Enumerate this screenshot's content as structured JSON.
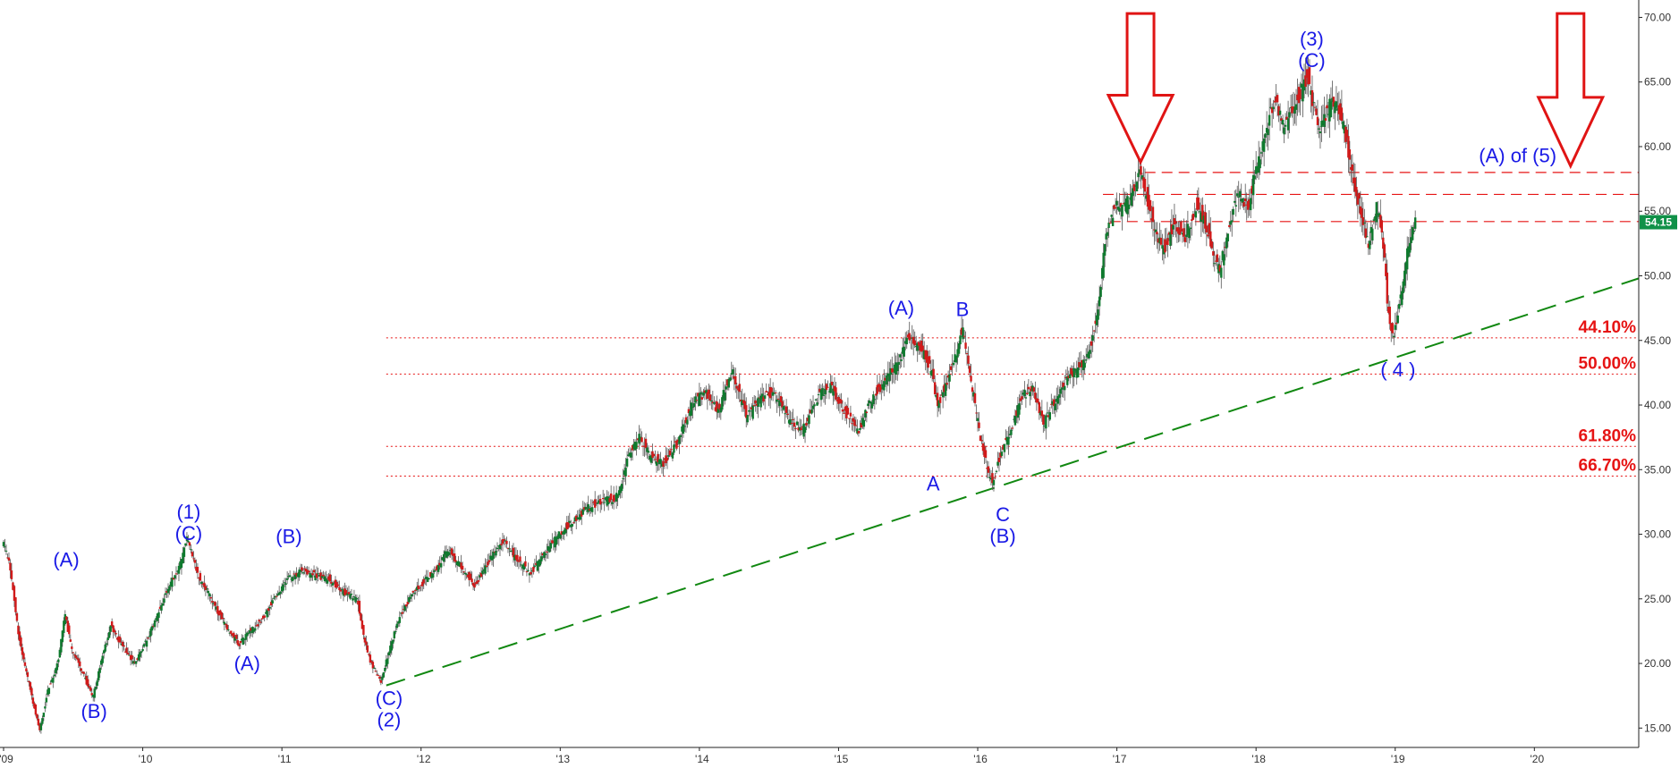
{
  "chart_data": {
    "type": "candlestick",
    "title": "",
    "xlabel": "",
    "ylabel": "",
    "xlim": [
      2009.0,
      2020.75
    ],
    "ylim": [
      13.5,
      71.0
    ],
    "y_axis_position": "right",
    "grid": false,
    "colors": {
      "up": "#0f7a2e",
      "down": "#d11a1a",
      "wick": "#555555",
      "wave_label": "#1a1ae6",
      "fib": "#e61414",
      "trendline": "#118811",
      "resistance": "#e61414",
      "arrow": "#e01414",
      "price_tag": "#109148"
    },
    "y_ticks": [
      "15.00",
      "20.00",
      "25.00",
      "30.00",
      "35.00",
      "40.00",
      "45.00",
      "50.00",
      "55.00",
      "60.00",
      "65.00",
      "70.00"
    ],
    "x_ticks": [
      {
        "x": 2009.0,
        "label": "'09"
      },
      {
        "x": 2010.0,
        "label": "'10"
      },
      {
        "x": 2011.0,
        "label": "'11"
      },
      {
        "x": 2012.0,
        "label": "'12"
      },
      {
        "x": 2013.0,
        "label": "'13"
      },
      {
        "x": 2014.0,
        "label": "'14"
      },
      {
        "x": 2015.0,
        "label": "'15"
      },
      {
        "x": 2016.0,
        "label": "'16"
      },
      {
        "x": 2017.0,
        "label": "'17"
      },
      {
        "x": 2018.0,
        "label": "'18"
      },
      {
        "x": 2019.0,
        "label": "'19"
      },
      {
        "x": 2020.0,
        "label": "'20"
      }
    ],
    "price_path": [
      [
        2009.0,
        29.5
      ],
      [
        2009.05,
        28.0
      ],
      [
        2009.12,
        22.0
      ],
      [
        2009.2,
        18.0
      ],
      [
        2009.27,
        14.8
      ],
      [
        2009.33,
        18.0
      ],
      [
        2009.4,
        20.0
      ],
      [
        2009.45,
        23.8
      ],
      [
        2009.5,
        21.0
      ],
      [
        2009.57,
        19.5
      ],
      [
        2009.65,
        17.3
      ],
      [
        2009.72,
        20.5
      ],
      [
        2009.78,
        23.0
      ],
      [
        2009.85,
        21.5
      ],
      [
        2009.95,
        20.0
      ],
      [
        2010.05,
        22.0
      ],
      [
        2010.12,
        24.0
      ],
      [
        2010.2,
        26.0
      ],
      [
        2010.28,
        27.8
      ],
      [
        2010.33,
        29.8
      ],
      [
        2010.4,
        27.0
      ],
      [
        2010.5,
        25.0
      ],
      [
        2010.6,
        23.0
      ],
      [
        2010.7,
        21.5
      ],
      [
        2010.78,
        22.5
      ],
      [
        2010.88,
        23.5
      ],
      [
        2010.95,
        25.0
      ],
      [
        2011.05,
        26.5
      ],
      [
        2011.15,
        27.2
      ],
      [
        2011.25,
        26.8
      ],
      [
        2011.35,
        26.5
      ],
      [
        2011.45,
        25.5
      ],
      [
        2011.55,
        25.0
      ],
      [
        2011.6,
        22.0
      ],
      [
        2011.65,
        20.0
      ],
      [
        2011.72,
        18.5
      ],
      [
        2011.78,
        21.0
      ],
      [
        2011.85,
        23.5
      ],
      [
        2011.95,
        25.5
      ],
      [
        2012.1,
        27.0
      ],
      [
        2012.2,
        28.8
      ],
      [
        2012.3,
        27.5
      ],
      [
        2012.4,
        26.0
      ],
      [
        2012.5,
        28.0
      ],
      [
        2012.6,
        29.5
      ],
      [
        2012.7,
        28.0
      ],
      [
        2012.8,
        27.0
      ],
      [
        2012.9,
        28.5
      ],
      [
        2013.0,
        30.0
      ],
      [
        2013.1,
        31.0
      ],
      [
        2013.2,
        32.0
      ],
      [
        2013.3,
        32.5
      ],
      [
        2013.4,
        32.8
      ],
      [
        2013.45,
        34.0
      ],
      [
        2013.5,
        36.0
      ],
      [
        2013.58,
        37.8
      ],
      [
        2013.65,
        36.0
      ],
      [
        2013.75,
        35.5
      ],
      [
        2013.85,
        37.0
      ],
      [
        2013.95,
        40.0
      ],
      [
        2014.05,
        41.0
      ],
      [
        2014.15,
        39.5
      ],
      [
        2014.2,
        41.5
      ],
      [
        2014.25,
        42.5
      ],
      [
        2014.35,
        39.0
      ],
      [
        2014.45,
        40.5
      ],
      [
        2014.55,
        41.0
      ],
      [
        2014.65,
        39.0
      ],
      [
        2014.75,
        38.0
      ],
      [
        2014.85,
        40.5
      ],
      [
        2014.95,
        41.5
      ],
      [
        2015.05,
        39.5
      ],
      [
        2015.15,
        38.0
      ],
      [
        2015.25,
        40.5
      ],
      [
        2015.35,
        42.0
      ],
      [
        2015.45,
        43.5
      ],
      [
        2015.5,
        45.3
      ],
      [
        2015.6,
        44.5
      ],
      [
        2015.68,
        42.5
      ],
      [
        2015.72,
        40.0
      ],
      [
        2015.78,
        41.5
      ],
      [
        2015.85,
        44.0
      ],
      [
        2015.9,
        46.0
      ],
      [
        2015.96,
        42.0
      ],
      [
        2016.02,
        38.0
      ],
      [
        2016.08,
        35.0
      ],
      [
        2016.12,
        34.0
      ],
      [
        2016.18,
        36.5
      ],
      [
        2016.25,
        38.0
      ],
      [
        2016.32,
        40.5
      ],
      [
        2016.4,
        41.5
      ],
      [
        2016.48,
        38.5
      ],
      [
        2016.55,
        40.0
      ],
      [
        2016.65,
        42.0
      ],
      [
        2016.75,
        43.0
      ],
      [
        2016.82,
        44.5
      ],
      [
        2016.88,
        48.0
      ],
      [
        2016.93,
        53.0
      ],
      [
        2017.0,
        55.5
      ],
      [
        2017.05,
        55.0
      ],
      [
        2017.12,
        56.5
      ],
      [
        2017.18,
        58.0
      ],
      [
        2017.25,
        55.0
      ],
      [
        2017.3,
        53.0
      ],
      [
        2017.35,
        52.0
      ],
      [
        2017.42,
        54.0
      ],
      [
        2017.5,
        53.0
      ],
      [
        2017.58,
        55.5
      ],
      [
        2017.65,
        54.0
      ],
      [
        2017.7,
        51.5
      ],
      [
        2017.75,
        50.5
      ],
      [
        2017.8,
        53.0
      ],
      [
        2017.88,
        56.5
      ],
      [
        2017.95,
        55.0
      ],
      [
        2018.0,
        58.0
      ],
      [
        2018.05,
        60.0
      ],
      [
        2018.1,
        62.0
      ],
      [
        2018.15,
        64.0
      ],
      [
        2018.2,
        61.5
      ],
      [
        2018.3,
        63.5
      ],
      [
        2018.38,
        65.5
      ],
      [
        2018.42,
        63.0
      ],
      [
        2018.48,
        61.5
      ],
      [
        2018.55,
        63.5
      ],
      [
        2018.6,
        63.0
      ],
      [
        2018.65,
        61.0
      ],
      [
        2018.7,
        58.0
      ],
      [
        2018.78,
        54.0
      ],
      [
        2018.82,
        52.5
      ],
      [
        2018.88,
        55.5
      ],
      [
        2018.92,
        53.0
      ],
      [
        2018.96,
        47.0
      ],
      [
        2019.0,
        45.2
      ],
      [
        2019.05,
        48.5
      ],
      [
        2019.1,
        52.0
      ],
      [
        2019.15,
        54.15
      ]
    ],
    "wave_labels": [
      {
        "x": 2009.45,
        "y": 27.5,
        "lines": [
          "(A)"
        ]
      },
      {
        "x": 2009.65,
        "y": 15.8,
        "lines": [
          "(B)"
        ]
      },
      {
        "x": 2010.33,
        "y": 31.2,
        "lines": [
          "(1)",
          "(C)"
        ]
      },
      {
        "x": 2010.75,
        "y": 19.5,
        "lines": [
          "(A)"
        ]
      },
      {
        "x": 2011.05,
        "y": 29.3,
        "lines": [
          "(B)"
        ]
      },
      {
        "x": 2011.77,
        "y": 16.8,
        "lines": [
          "(C)",
          "(2)"
        ]
      },
      {
        "x": 2015.45,
        "y": 47.0,
        "lines": [
          "(A)"
        ]
      },
      {
        "x": 2015.89,
        "y": 46.9,
        "lines": [
          "B"
        ]
      },
      {
        "x": 2015.68,
        "y": 33.4,
        "lines": [
          "A"
        ]
      },
      {
        "x": 2016.18,
        "y": 31.0,
        "lines": [
          "C",
          "(B)"
        ]
      },
      {
        "x": 2018.4,
        "y": 67.8,
        "lines": [
          "(3)",
          "(C)"
        ]
      },
      {
        "x": 2019.02,
        "y": 42.2,
        "lines": [
          "( 4 )"
        ]
      },
      {
        "x": 2019.88,
        "y": 58.8,
        "lines": [
          "(A) of (5)"
        ]
      }
    ],
    "fib_levels": [
      {
        "label": "44.10%",
        "value": 45.2
      },
      {
        "label": "50.00%",
        "value": 42.4
      },
      {
        "label": "61.80%",
        "value": 36.8
      },
      {
        "label": "66.70%",
        "value": 34.5
      }
    ],
    "fib_start_x": 2011.75,
    "resistance_lines": [
      {
        "value": 58.0,
        "x_start": 2017.2
      },
      {
        "value": 56.3,
        "x_start": 2016.9
      },
      {
        "value": 54.2,
        "x_start": 2016.95
      }
    ],
    "trendline": {
      "x1": 2011.75,
      "y1": 18.3,
      "x2": 2020.75,
      "y2": 49.8
    },
    "arrows": [
      {
        "x": 2017.17,
        "y_top": 70.3,
        "y_tip": 58.8
      },
      {
        "x": 2020.26,
        "y_top": 70.3,
        "y_tip": 58.5
      }
    ],
    "last_price": {
      "value": 54.15,
      "label": "54.15"
    }
  }
}
